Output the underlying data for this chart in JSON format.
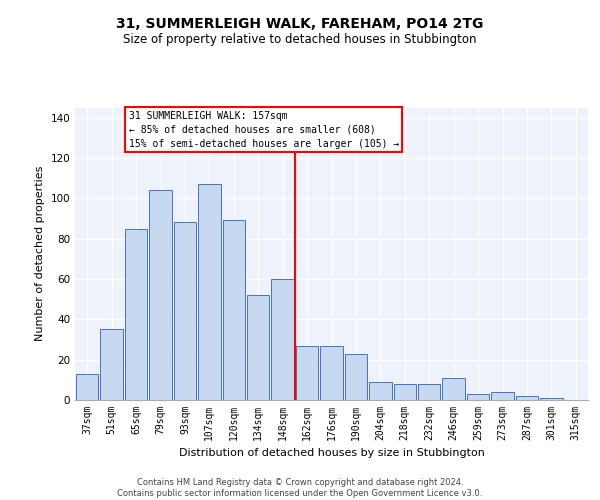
{
  "title": "31, SUMMERLEIGH WALK, FAREHAM, PO14 2TG",
  "subtitle": "Size of property relative to detached houses in Stubbington",
  "xlabel": "Distribution of detached houses by size in Stubbington",
  "ylabel": "Number of detached properties",
  "categories": [
    "37sqm",
    "51sqm",
    "65sqm",
    "79sqm",
    "93sqm",
    "107sqm",
    "120sqm",
    "134sqm",
    "148sqm",
    "162sqm",
    "176sqm",
    "190sqm",
    "204sqm",
    "218sqm",
    "232sqm",
    "246sqm",
    "259sqm",
    "273sqm",
    "287sqm",
    "301sqm",
    "315sqm"
  ],
  "bar_heights": [
    13,
    35,
    85,
    104,
    88,
    107,
    89,
    52,
    60,
    27,
    27,
    23,
    9,
    8,
    8,
    11,
    3,
    4,
    2,
    1,
    0
  ],
  "bar_color": "#c6d9f1",
  "bar_edge_color": "#4472c4",
  "vline_color": "red",
  "annotation_text": "31 SUMMERLEIGH WALK: 157sqm\n← 85% of detached houses are smaller (608)\n15% of semi-detached houses are larger (105) →",
  "ylim": [
    0,
    145
  ],
  "yticks": [
    0,
    20,
    40,
    60,
    80,
    100,
    120,
    140
  ],
  "footer_text": "Contains HM Land Registry data © Crown copyright and database right 2024.\nContains public sector information licensed under the Open Government Licence v3.0.",
  "bg_color": "#eef2fb",
  "grid_color": "#ffffff",
  "title_fontsize": 10,
  "subtitle_fontsize": 8.5,
  "ylabel_fontsize": 8,
  "xlabel_fontsize": 8,
  "tick_fontsize": 7,
  "annot_fontsize": 7
}
